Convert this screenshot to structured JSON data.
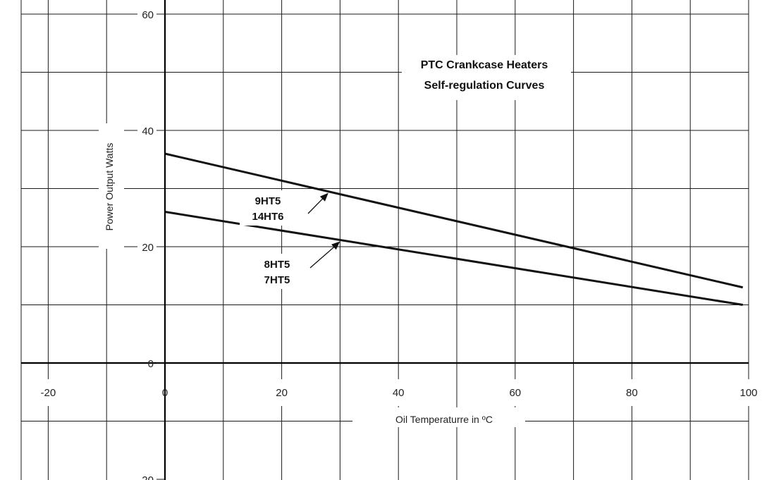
{
  "chart_data": {
    "type": "line",
    "title": "PTC Crankcase Heaters",
    "subtitle": "Self-regulation Curves",
    "xlabel": "Oil Temperaturre in ºC",
    "ylabel": "Power Output Watts",
    "xlim": [
      -25,
      100
    ],
    "ylim": [
      -20,
      60
    ],
    "x_ticks": [
      "-20",
      "0",
      "20",
      "40",
      "60",
      "80",
      "100"
    ],
    "y_ticks": [
      "60",
      "40",
      "20",
      "0",
      "-20"
    ],
    "grid": true,
    "series": [
      {
        "name_lines": [
          "9HT5",
          "14HT6"
        ],
        "x": [
          0,
          99
        ],
        "y": [
          36,
          13
        ],
        "label_target_x": 28
      },
      {
        "name_lines": [
          "8HT5",
          "7HT5"
        ],
        "x": [
          0,
          99
        ],
        "y": [
          26,
          10
        ],
        "label_target_x": 30
      }
    ]
  }
}
